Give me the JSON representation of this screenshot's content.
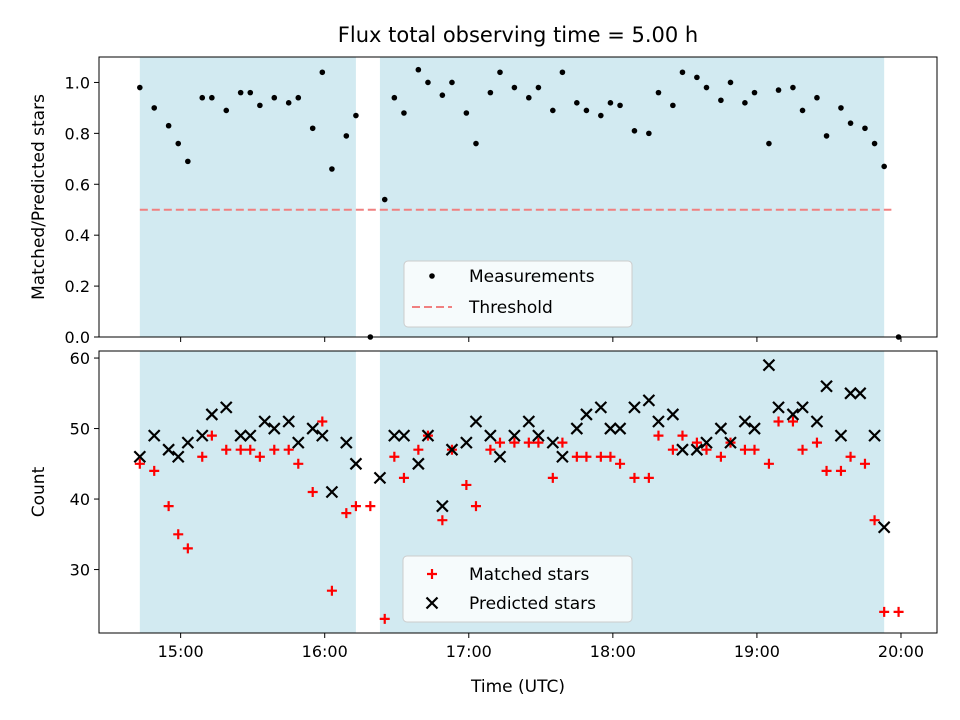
{
  "title": "Flux total observing time = 5.00 h",
  "colors": {
    "shade": "#add8e6",
    "threshold": "#f08080",
    "matched": "#ff0000",
    "predicted": "#000000",
    "measure": "#000000"
  },
  "chart_data": [
    {
      "type": "scatter",
      "title": "Flux total observing time = 5.00 h",
      "xlabel": "",
      "ylabel": "Matched/Predicted stars",
      "xlim": [
        "14:26",
        "20:15"
      ],
      "ylim": [
        0,
        1.1
      ],
      "y_ticks": [
        0.0,
        0.2,
        0.4,
        0.6,
        0.8,
        1.0
      ],
      "y_tick_labels": [
        "0.0",
        "0.2",
        "0.4",
        "0.6",
        "0.8",
        "1.0"
      ],
      "observing_windows": [
        [
          "14:43",
          "16:13"
        ],
        [
          "16:23",
          "19:53"
        ]
      ],
      "threshold": {
        "value": 0.5,
        "from": "14:43",
        "to": "19:56"
      },
      "legend": {
        "position": "lower-center",
        "entries": [
          "Measurements",
          "Threshold"
        ]
      },
      "series": [
        {
          "name": "Measurements",
          "points": [
            [
              "14:43",
              0.98
            ],
            [
              "14:49",
              0.9
            ],
            [
              "14:55",
              0.83
            ],
            [
              "14:59",
              0.76
            ],
            [
              "15:03",
              0.69
            ],
            [
              "15:09",
              0.94
            ],
            [
              "15:13",
              0.94
            ],
            [
              "15:19",
              0.89
            ],
            [
              "15:25",
              0.96
            ],
            [
              "15:29",
              0.96
            ],
            [
              "15:33",
              0.91
            ],
            [
              "15:39",
              0.94
            ],
            [
              "15:45",
              0.92
            ],
            [
              "15:49",
              0.94
            ],
            [
              "15:55",
              0.82
            ],
            [
              "15:59",
              1.04
            ],
            [
              "16:03",
              0.66
            ],
            [
              "16:09",
              0.79
            ],
            [
              "16:13",
              0.87
            ],
            [
              "16:19",
              0.0
            ],
            [
              "16:25",
              0.54
            ],
            [
              "16:29",
              0.94
            ],
            [
              "16:33",
              0.88
            ],
            [
              "16:39",
              1.05
            ],
            [
              "16:43",
              1.0
            ],
            [
              "16:49",
              0.95
            ],
            [
              "16:53",
              1.0
            ],
            [
              "16:59",
              0.88
            ],
            [
              "17:03",
              0.76
            ],
            [
              "17:09",
              0.96
            ],
            [
              "17:13",
              1.04
            ],
            [
              "17:19",
              0.98
            ],
            [
              "17:25",
              0.94
            ],
            [
              "17:29",
              0.98
            ],
            [
              "17:35",
              0.89
            ],
            [
              "17:39",
              1.04
            ],
            [
              "17:45",
              0.92
            ],
            [
              "17:49",
              0.89
            ],
            [
              "17:55",
              0.87
            ],
            [
              "17:59",
              0.92
            ],
            [
              "18:03",
              0.91
            ],
            [
              "18:09",
              0.81
            ],
            [
              "18:15",
              0.8
            ],
            [
              "18:19",
              0.96
            ],
            [
              "18:25",
              0.91
            ],
            [
              "18:29",
              1.04
            ],
            [
              "18:35",
              1.02
            ],
            [
              "18:39",
              0.98
            ],
            [
              "18:45",
              0.93
            ],
            [
              "18:49",
              1.0
            ],
            [
              "18:55",
              0.92
            ],
            [
              "18:59",
              0.96
            ],
            [
              "19:05",
              0.76
            ],
            [
              "19:09",
              0.97
            ],
            [
              "19:15",
              0.98
            ],
            [
              "19:19",
              0.89
            ],
            [
              "19:25",
              0.94
            ],
            [
              "19:29",
              0.79
            ],
            [
              "19:35",
              0.9
            ],
            [
              "19:39",
              0.84
            ],
            [
              "19:45",
              0.82
            ],
            [
              "19:49",
              0.76
            ],
            [
              "19:53",
              0.67
            ],
            [
              "19:59",
              0.0
            ]
          ]
        }
      ]
    },
    {
      "type": "scatter",
      "title": "",
      "xlabel": "Time (UTC)",
      "ylabel": "Count",
      "xlim": [
        "14:26",
        "20:15"
      ],
      "ylim": [
        21,
        61
      ],
      "y_ticks": [
        30,
        40,
        50,
        60
      ],
      "y_tick_labels": [
        "30",
        "40",
        "50",
        "60"
      ],
      "x_ticks": [
        "15:00",
        "16:00",
        "17:00",
        "18:00",
        "19:00",
        "20:00"
      ],
      "x_tick_labels": [
        "15:00",
        "16:00",
        "17:00",
        "18:00",
        "19:00",
        "20:00"
      ],
      "observing_windows": [
        [
          "14:43",
          "16:13"
        ],
        [
          "16:23",
          "19:53"
        ]
      ],
      "legend": {
        "position": "lower-center",
        "entries": [
          "Matched stars",
          "Predicted stars"
        ]
      },
      "series": [
        {
          "name": "Matched stars",
          "points": [
            [
              "14:43",
              45
            ],
            [
              "14:49",
              44
            ],
            [
              "14:55",
              39
            ],
            [
              "14:59",
              35
            ],
            [
              "15:03",
              33
            ],
            [
              "15:09",
              46
            ],
            [
              "15:13",
              49
            ],
            [
              "15:19",
              47
            ],
            [
              "15:25",
              47
            ],
            [
              "15:29",
              47
            ],
            [
              "15:33",
              46
            ],
            [
              "15:39",
              47
            ],
            [
              "15:45",
              47
            ],
            [
              "15:49",
              45
            ],
            [
              "15:55",
              41
            ],
            [
              "15:59",
              51
            ],
            [
              "16:03",
              27
            ],
            [
              "16:09",
              38
            ],
            [
              "16:13",
              39
            ],
            [
              "16:19",
              39
            ],
            [
              "16:25",
              23
            ],
            [
              "16:29",
              46
            ],
            [
              "16:33",
              43
            ],
            [
              "16:39",
              47
            ],
            [
              "16:43",
              49
            ],
            [
              "16:49",
              37
            ],
            [
              "16:53",
              47
            ],
            [
              "16:59",
              42
            ],
            [
              "17:03",
              39
            ],
            [
              "17:09",
              47
            ],
            [
              "17:13",
              48
            ],
            [
              "17:19",
              48
            ],
            [
              "17:25",
              48
            ],
            [
              "17:29",
              48
            ],
            [
              "17:35",
              43
            ],
            [
              "17:39",
              48
            ],
            [
              "17:45",
              46
            ],
            [
              "17:49",
              46
            ],
            [
              "17:55",
              46
            ],
            [
              "17:59",
              46
            ],
            [
              "18:03",
              45
            ],
            [
              "18:09",
              43
            ],
            [
              "18:15",
              43
            ],
            [
              "18:19",
              49
            ],
            [
              "18:25",
              47
            ],
            [
              "18:29",
              49
            ],
            [
              "18:35",
              48
            ],
            [
              "18:39",
              47
            ],
            [
              "18:45",
              46
            ],
            [
              "18:49",
              48
            ],
            [
              "18:55",
              47
            ],
            [
              "18:59",
              47
            ],
            [
              "19:05",
              45
            ],
            [
              "19:09",
              51
            ],
            [
              "19:15",
              51
            ],
            [
              "19:19",
              47
            ],
            [
              "19:25",
              48
            ],
            [
              "19:29",
              44
            ],
            [
              "19:35",
              44
            ],
            [
              "19:39",
              46
            ],
            [
              "19:45",
              45
            ],
            [
              "19:49",
              37
            ],
            [
              "19:53",
              24
            ],
            [
              "19:59",
              24
            ]
          ]
        },
        {
          "name": "Predicted stars",
          "points": [
            [
              "14:43",
              46
            ],
            [
              "14:49",
              49
            ],
            [
              "14:55",
              47
            ],
            [
              "14:59",
              46
            ],
            [
              "15:03",
              48
            ],
            [
              "15:09",
              49
            ],
            [
              "15:13",
              52
            ],
            [
              "15:19",
              53
            ],
            [
              "15:25",
              49
            ],
            [
              "15:29",
              49
            ],
            [
              "15:35",
              51
            ],
            [
              "15:39",
              50
            ],
            [
              "15:45",
              51
            ],
            [
              "15:49",
              48
            ],
            [
              "15:55",
              50
            ],
            [
              "15:59",
              49
            ],
            [
              "16:03",
              41
            ],
            [
              "16:09",
              48
            ],
            [
              "16:13",
              45
            ],
            [
              "16:23",
              43
            ],
            [
              "16:29",
              49
            ],
            [
              "16:33",
              49
            ],
            [
              "16:39",
              45
            ],
            [
              "16:43",
              49
            ],
            [
              "16:49",
              39
            ],
            [
              "16:53",
              47
            ],
            [
              "16:59",
              48
            ],
            [
              "17:03",
              51
            ],
            [
              "17:09",
              49
            ],
            [
              "17:13",
              46
            ],
            [
              "17:19",
              49
            ],
            [
              "17:25",
              51
            ],
            [
              "17:29",
              49
            ],
            [
              "17:35",
              48
            ],
            [
              "17:39",
              46
            ],
            [
              "17:45",
              50
            ],
            [
              "17:49",
              52
            ],
            [
              "17:55",
              53
            ],
            [
              "17:59",
              50
            ],
            [
              "18:03",
              50
            ],
            [
              "18:09",
              53
            ],
            [
              "18:15",
              54
            ],
            [
              "18:19",
              51
            ],
            [
              "18:25",
              52
            ],
            [
              "18:29",
              47
            ],
            [
              "18:35",
              47
            ],
            [
              "18:39",
              48
            ],
            [
              "18:45",
              50
            ],
            [
              "18:49",
              48
            ],
            [
              "18:55",
              51
            ],
            [
              "18:59",
              50
            ],
            [
              "19:05",
              59
            ],
            [
              "19:09",
              53
            ],
            [
              "19:15",
              52
            ],
            [
              "19:19",
              53
            ],
            [
              "19:25",
              51
            ],
            [
              "19:29",
              56
            ],
            [
              "19:35",
              49
            ],
            [
              "19:39",
              55
            ],
            [
              "19:43",
              55
            ],
            [
              "19:49",
              49
            ],
            [
              "19:53",
              36
            ]
          ]
        }
      ]
    }
  ]
}
